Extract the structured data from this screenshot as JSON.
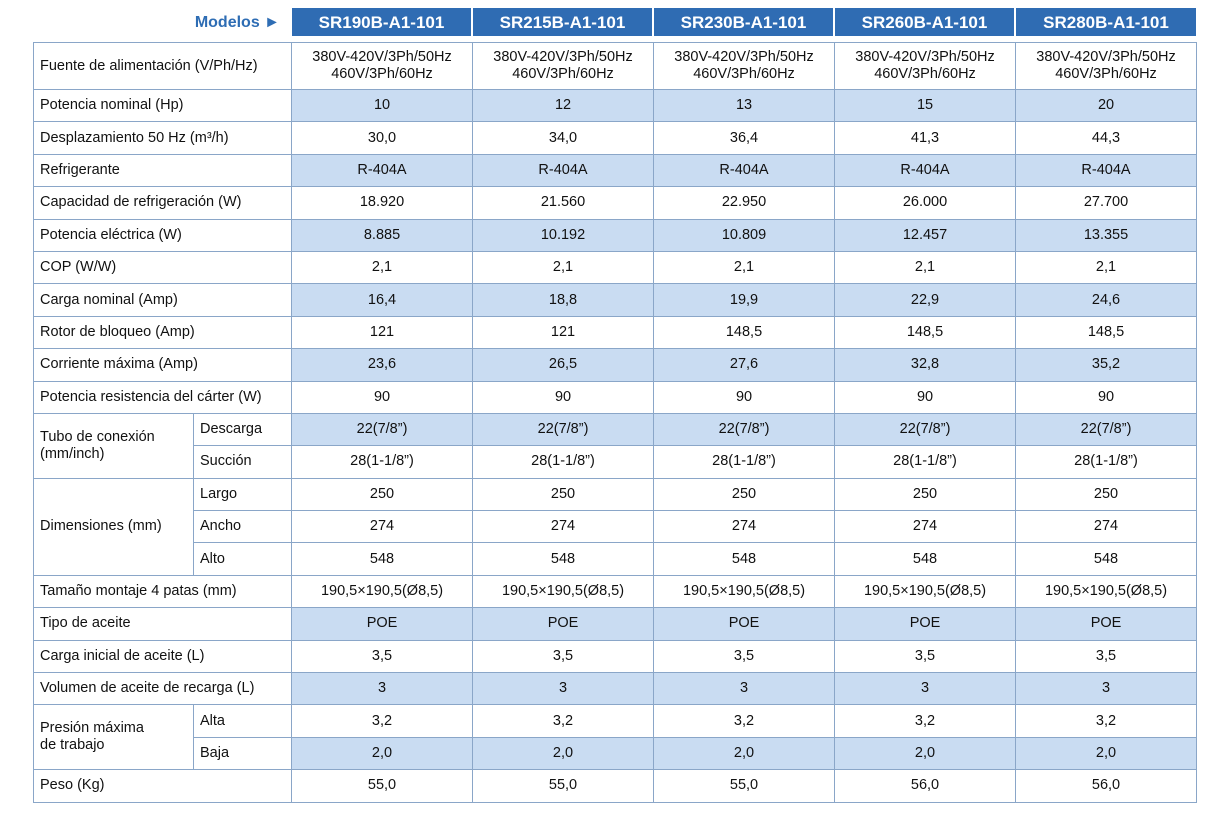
{
  "header": {
    "label": "Modelos ►",
    "models": [
      "SR190B-A1-101",
      "SR215B-A1-101",
      "SR230B-A1-101",
      "SR260B-A1-101",
      "SR280B-A1-101"
    ]
  },
  "rows": [
    {
      "label": "Fuente de alimentación (V/Ph/Hz)",
      "values": [
        [
          "380V-420V/3Ph/50Hz",
          "460V/3Ph/60Hz"
        ],
        [
          "380V-420V/3Ph/50Hz",
          "460V/3Ph/60Hz"
        ],
        [
          "380V-420V/3Ph/50Hz",
          "460V/3Ph/60Hz"
        ],
        [
          "380V-420V/3Ph/50Hz",
          "460V/3Ph/60Hz"
        ],
        [
          "380V-420V/3Ph/50Hz",
          "460V/3Ph/60Hz"
        ]
      ]
    },
    {
      "label": "Potencia nominal (Hp)",
      "values": [
        "10",
        "12",
        "13",
        "15",
        "20"
      ]
    },
    {
      "label": "Desplazamiento 50 Hz (m³/h)",
      "values": [
        "30,0",
        "34,0",
        "36,4",
        "41,3",
        "44,3"
      ]
    },
    {
      "label": "Refrigerante",
      "values": [
        "R-404A",
        "R-404A",
        "R-404A",
        "R-404A",
        "R-404A"
      ]
    },
    {
      "label": "Capacidad de refrigeración (W)",
      "values": [
        "18.920",
        "21.560",
        "22.950",
        "26.000",
        "27.700"
      ]
    },
    {
      "label": "Potencia eléctrica (W)",
      "values": [
        "8.885",
        "10.192",
        "10.809",
        "12.457",
        "13.355"
      ]
    },
    {
      "label": "COP (W/W)",
      "values": [
        "2,1",
        "2,1",
        "2,1",
        "2,1",
        "2,1"
      ]
    },
    {
      "label": "Carga nominal (Amp)",
      "values": [
        "16,4",
        "18,8",
        "19,9",
        "22,9",
        "24,6"
      ]
    },
    {
      "label": "Rotor de bloqueo (Amp)",
      "values": [
        "121",
        "121",
        "148,5",
        "148,5",
        "148,5"
      ]
    },
    {
      "label": "Corriente máxima (Amp)",
      "values": [
        "23,6",
        "26,5",
        "27,6",
        "32,8",
        "35,2"
      ]
    },
    {
      "label": "Potencia resistencia del cárter (W)",
      "values": [
        "90",
        "90",
        "90",
        "90",
        "90"
      ]
    },
    {
      "group": [
        "Tubo de conexión",
        "(mm/inch)"
      ],
      "rows": [
        {
          "label": "Descarga",
          "values": [
            "22(7/8”)",
            "22(7/8”)",
            "22(7/8”)",
            "22(7/8”)",
            "22(7/8”)"
          ]
        },
        {
          "label": "Succión",
          "values": [
            "28(1-1/8”)",
            "28(1-1/8”)",
            "28(1-1/8”)",
            "28(1-1/8”)",
            "28(1-1/8”)"
          ]
        }
      ]
    },
    {
      "group": [
        "Dimensiones (mm)"
      ],
      "rows": [
        {
          "label": "Largo",
          "values": [
            "250",
            "250",
            "250",
            "250",
            "250"
          ]
        },
        {
          "label": "Ancho",
          "values": [
            "274",
            "274",
            "274",
            "274",
            "274"
          ]
        },
        {
          "label": "Alto",
          "values": [
            "548",
            "548",
            "548",
            "548",
            "548"
          ]
        }
      ]
    },
    {
      "label": "Tamaño montaje 4 patas (mm)",
      "values": [
        "190,5×190,5(Ø8,5)",
        "190,5×190,5(Ø8,5)",
        "190,5×190,5(Ø8,5)",
        "190,5×190,5(Ø8,5)",
        "190,5×190,5(Ø8,5)"
      ]
    },
    {
      "label": "Tipo de aceite",
      "values": [
        "POE",
        "POE",
        "POE",
        "POE",
        "POE"
      ]
    },
    {
      "label": "Carga inicial de aceite (L)",
      "values": [
        "3,5",
        "3,5",
        "3,5",
        "3,5",
        "3,5"
      ]
    },
    {
      "label": "Volumen de aceite de recarga (L)",
      "values": [
        "3",
        "3",
        "3",
        "3",
        "3"
      ]
    },
    {
      "group": [
        "Presión máxima",
        "de trabajo"
      ],
      "rows": [
        {
          "label": "Alta",
          "values": [
            "3,2",
            "3,2",
            "3,2",
            "3,2",
            "3,2"
          ]
        },
        {
          "label": "Baja",
          "values": [
            "2,0",
            "2,0",
            "2,0",
            "2,0",
            "2,0"
          ]
        }
      ]
    },
    {
      "label": "Peso (Kg)",
      "values": [
        "55,0",
        "55,0",
        "55,0",
        "56,0",
        "56,0"
      ]
    }
  ]
}
